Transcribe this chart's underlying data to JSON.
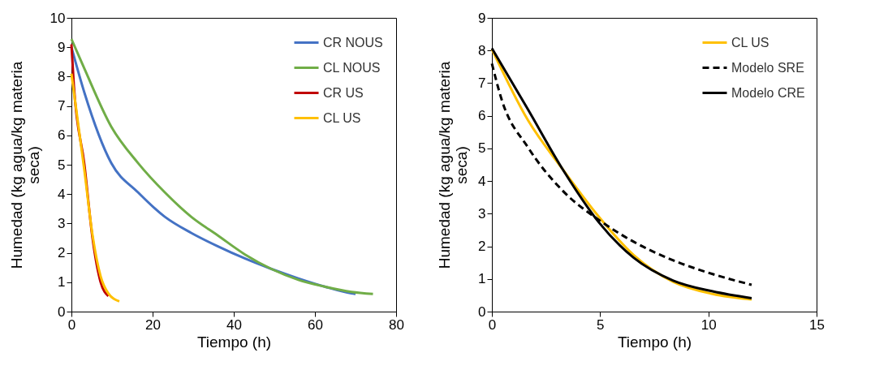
{
  "chart_data": [
    {
      "type": "line",
      "xlabel": "Tiempo (h)",
      "ylabel": "Humedad (kg agua/kg materia seca)",
      "xlim": [
        0,
        80
      ],
      "xticks": [
        0,
        20,
        40,
        60,
        80
      ],
      "ylim": [
        0,
        10
      ],
      "yticks": [
        0,
        1,
        2,
        3,
        4,
        5,
        6,
        7,
        8,
        9,
        10
      ],
      "grid": false,
      "legend": "top right",
      "line_style": "solid",
      "marker": "none",
      "series": [
        {
          "name": "CR NOUS",
          "color": "#4472c4",
          "x": [
            0,
            3.2,
            9.8,
            16.4,
            23,
            29.5,
            36.1,
            42.7,
            49.3,
            55.9,
            62.4,
            69,
            70
          ],
          "values": [
            9.0,
            7.45,
            5.06,
            4.06,
            3.23,
            2.68,
            2.22,
            1.81,
            1.45,
            1.13,
            0.85,
            0.62,
            0.6
          ]
        },
        {
          "name": "CL  NOUS",
          "color": "#70ad47",
          "x": [
            0,
            3.2,
            9.8,
            16.4,
            23,
            29.5,
            36.1,
            42.7,
            49.3,
            55.9,
            62.4,
            69,
            74.3
          ],
          "values": [
            9.28,
            8.27,
            6.3,
            5.06,
            4.06,
            3.23,
            2.59,
            1.95,
            1.45,
            1.08,
            0.85,
            0.67,
            0.6
          ]
        },
        {
          "name": "CR US",
          "color": "#c00000",
          "x": [
            0,
            0.6,
            3.2,
            5.2,
            7.2,
            9.1
          ],
          "values": [
            9.1,
            7.7,
            5.0,
            2.5,
            1.0,
            0.53
          ]
        },
        {
          "name": "CL US",
          "color": "#ffc000",
          "x": [
            0,
            3.2,
            5.2,
            7.2,
            9.1,
            11.8
          ],
          "values": [
            8.1,
            4.8,
            2.6,
            1.2,
            0.62,
            0.35
          ]
        }
      ]
    },
    {
      "type": "line",
      "xlabel": "Tiempo (h)",
      "ylabel": "Humedad (kg agua/kg materia seca)",
      "xlim": [
        0,
        15
      ],
      "xticks": [
        0,
        5,
        10,
        15
      ],
      "ylim": [
        0,
        9
      ],
      "yticks": [
        0,
        1,
        2,
        3,
        4,
        5,
        6,
        7,
        8,
        9
      ],
      "grid": false,
      "legend": "top right",
      "marker": "none",
      "series": [
        {
          "name": "CL US",
          "color": "#ffc000",
          "line_style": "solid",
          "x": [
            0,
            1.67,
            3.26,
            4.96,
            6.55,
            8.38,
            10.2,
            12
          ],
          "values": [
            8.04,
            5.86,
            4.37,
            2.89,
            1.73,
            0.91,
            0.54,
            0.37
          ]
        },
        {
          "name": "Modelo SRE",
          "color": "#000000",
          "line_style": "dashed",
          "x": [
            0,
            0.45,
            1.67,
            3.26,
            4.96,
            6.55,
            8.38,
            10.2,
            12
          ],
          "values": [
            7.6,
            6.5,
            5.03,
            3.71,
            2.8,
            2.14,
            1.57,
            1.15,
            0.82
          ]
        },
        {
          "name": "Modelo CRE",
          "color": "#000000",
          "line_style": "solid",
          "x": [
            0,
            1.67,
            3.26,
            4.96,
            6.55,
            8.38,
            10.2,
            12
          ],
          "values": [
            8.07,
            6.19,
            4.37,
            2.72,
            1.65,
            0.95,
            0.62,
            0.41
          ]
        }
      ]
    }
  ]
}
